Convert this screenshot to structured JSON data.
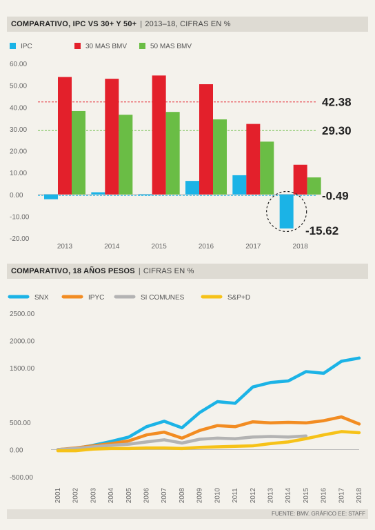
{
  "chart1": {
    "title_bold": "COMPARATIVO, IPC VS 30+ Y 50+",
    "title_light": "2013–18, CIFRAS EN %"
  },
  "chart2": {
    "title_bold": "COMPARATIVO, 18 AÑOS PESOS",
    "title_light": "CIFRAS EN %"
  },
  "source": "FUENTE: BMV. GRÁFICO EE: STAFF",
  "colors": {
    "IPC": "#1bb3e6",
    "30 MAS BMV": "#e3202b",
    "50 MAS BMV": "#6abd45",
    "SNX": "#1bb3e6",
    "IPYC": "#f28c22",
    "SI COMUNES": "#b3b3b3",
    "S&P+D": "#f6c218"
  },
  "chart_data": [
    {
      "type": "bar",
      "categories": [
        "2013",
        "2014",
        "2015",
        "2016",
        "2017",
        "2018"
      ],
      "series": [
        {
          "name": "IPC",
          "values": [
            -2.2,
            1.0,
            -0.4,
            6.2,
            8.8,
            -15.62
          ]
        },
        {
          "name": "30 MAS BMV",
          "values": [
            53.8,
            53.0,
            54.5,
            50.5,
            32.3,
            13.6
          ]
        },
        {
          "name": "50 MAS BMV",
          "values": [
            38.2,
            36.5,
            37.8,
            34.4,
            24.2,
            7.8
          ]
        }
      ],
      "yticks": [
        "60.00",
        "50.00",
        "40.00",
        "30.00",
        "20.00",
        "10.00",
        "0.00",
        "-10.00",
        "-20.00"
      ],
      "ylim": [
        -20,
        60
      ],
      "reference_lines": [
        {
          "value": 42.38,
          "label": "42.38",
          "color": "#e3202b"
        },
        {
          "value": 29.3,
          "label": "29.30",
          "color": "#6abd45"
        },
        {
          "value": -0.49,
          "label": "-0.49",
          "color": "#1bb3e6"
        }
      ],
      "annotation": {
        "label": "-15.62",
        "category": "2018"
      },
      "grid": false,
      "legend": "top-left"
    },
    {
      "type": "line",
      "x": [
        "2001",
        "2002",
        "2003",
        "2004",
        "2005",
        "2006",
        "2007",
        "2008",
        "2009",
        "2010",
        "2011",
        "2012",
        "2013",
        "2014",
        "2015",
        "2016",
        "2017",
        "2018"
      ],
      "series": [
        {
          "name": "SNX",
          "values": [
            0,
            20,
            80,
            150,
            230,
            420,
            520,
            400,
            680,
            880,
            850,
            1150,
            1230,
            1260,
            1430,
            1400,
            1620,
            1680
          ]
        },
        {
          "name": "IPYC",
          "values": [
            0,
            30,
            70,
            110,
            160,
            270,
            320,
            210,
            350,
            440,
            420,
            510,
            490,
            500,
            490,
            530,
            600,
            470
          ]
        },
        {
          "name": "SI COMUNES",
          "values": [
            0,
            20,
            50,
            80,
            100,
            140,
            180,
            120,
            190,
            210,
            200,
            230,
            240,
            230,
            250,
            null,
            null,
            null
          ]
        },
        {
          "name": "S&P+D",
          "values": [
            -20,
            -20,
            10,
            20,
            20,
            30,
            30,
            20,
            40,
            50,
            60,
            70,
            110,
            140,
            200,
            270,
            330,
            310
          ]
        }
      ],
      "yticks": [
        "2500.00",
        "2000.00",
        "1500.00",
        "500.00",
        "0.00",
        "-500.00"
      ],
      "ylim": [
        -500,
        2500
      ],
      "grid": false,
      "legend": "top-left"
    }
  ]
}
